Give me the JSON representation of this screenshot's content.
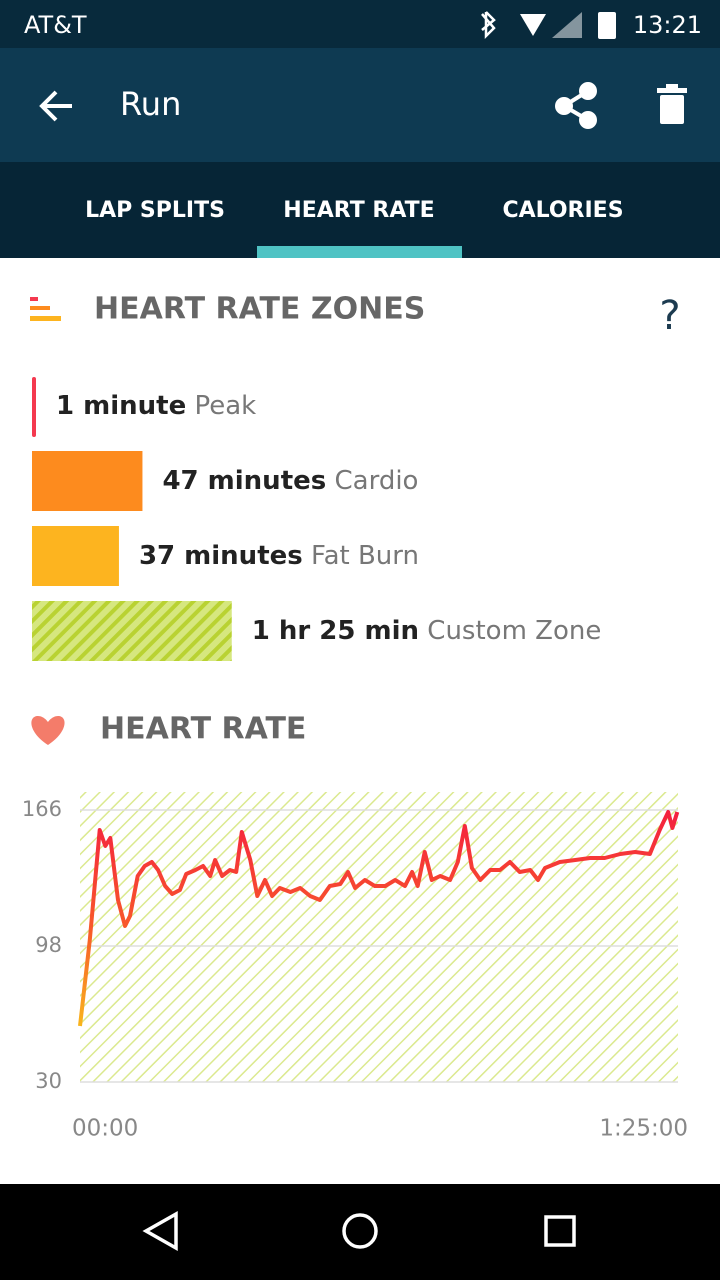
{
  "status_bar": {
    "carrier": "AT&T",
    "time": "13:21"
  },
  "toolbar": {
    "title": "Run"
  },
  "tabs": [
    "LAP SPLITS",
    "HEART RATE",
    "CALORIES"
  ],
  "zones_section": {
    "title": "HEART RATE ZONES",
    "help": "?",
    "zones": [
      {
        "amount": "1 minute",
        "name": "Peak",
        "minutes": 1,
        "color": "#f4394f"
      },
      {
        "amount": "47 minutes",
        "name": "Cardio",
        "minutes": 47,
        "color": "#fd8b1e"
      },
      {
        "amount": "37 minutes",
        "name": "Fat Burn",
        "minutes": 37,
        "color": "#fdb41f"
      },
      {
        "amount": "1 hr 25 min",
        "name": "Custom Zone",
        "minutes": 85,
        "color": "#c4db3c"
      }
    ]
  },
  "heart_rate_section": {
    "title": "HEART RATE"
  },
  "chart_data": {
    "type": "line",
    "x": [
      0,
      1.4,
      2.8,
      3.6,
      4.3,
      5.4,
      6.4,
      7.1,
      8.2,
      9.2,
      10.2,
      11.1,
      12.1,
      13.1,
      14.2,
      15.1,
      16.4,
      17.5,
      18.5,
      19.2,
      20.2,
      21.3,
      22.2,
      23.0,
      24.2,
      25.2,
      26.3,
      27.3,
      28.4,
      29.9,
      31.3,
      32.7,
      34.1,
      35.5,
      37.0,
      38.1,
      39.1,
      40.5,
      41.9,
      43.4,
      44.8,
      46.2,
      47.2,
      48.0,
      49.0,
      50.0,
      51.2,
      52.6,
      53.7,
      54.7,
      55.7,
      56.9,
      58.3,
      59.7,
      61.1,
      62.5,
      64.0,
      65.1,
      66.1,
      68.2,
      70.4,
      72.5,
      74.6,
      76.8,
      78.9,
      81.0,
      82.4,
      83.6,
      84.2,
      84.9
    ],
    "values": [
      58,
      101,
      156,
      148,
      152,
      121,
      108,
      113,
      133,
      138,
      140,
      136,
      128,
      124,
      126,
      134,
      136,
      138,
      133,
      141,
      133,
      136,
      135,
      155,
      141,
      123,
      131,
      123,
      127,
      125,
      127,
      123,
      121,
      128,
      129,
      135,
      127,
      131,
      128,
      128,
      131,
      128,
      135,
      128,
      145,
      131,
      133,
      131,
      140,
      158,
      137,
      131,
      136,
      136,
      140,
      135,
      136,
      131,
      137,
      140,
      141,
      142,
      142,
      144,
      145,
      144,
      156,
      165,
      157,
      165
    ],
    "color": "#f4213f",
    "xlim": [
      0,
      85
    ],
    "xticks": [
      {
        "value": 0,
        "label": "00:00"
      },
      {
        "value": 85,
        "label": "1:25:00"
      }
    ],
    "ylim": [
      30,
      166
    ],
    "yticks": [
      30,
      98,
      166
    ],
    "grid": true
  }
}
